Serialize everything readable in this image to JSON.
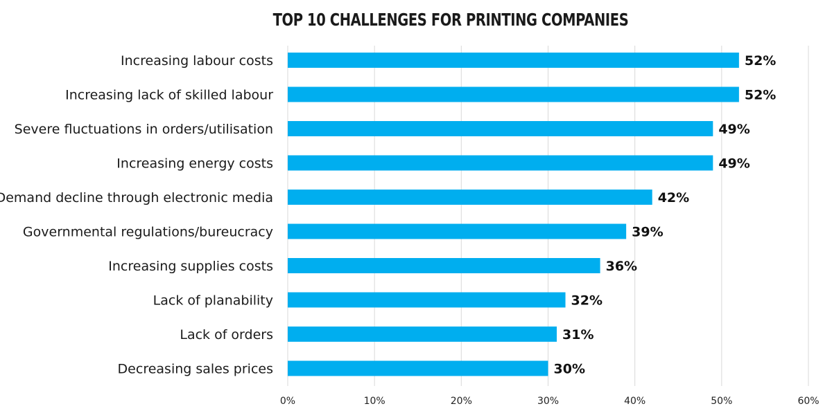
{
  "chart_data": {
    "type": "bar",
    "orientation": "horizontal",
    "title": "TOP 10 CHALLENGES FOR PRINTING COMPANIES",
    "categories": [
      "Increasing labour costs",
      "Increasing lack of skilled labour",
      "Severe fluctuations in orders/utilisation",
      "Increasing energy costs",
      "Demand decline through electronic media",
      "Governmental regulations/bureucracy",
      "Increasing supplies costs",
      "Lack of planability",
      "Lack of orders",
      "Decreasing sales prices"
    ],
    "values": [
      52,
      52,
      49,
      49,
      42,
      39,
      36,
      32,
      31,
      30
    ],
    "value_labels": [
      "52%",
      "52%",
      "49%",
      "49%",
      "42%",
      "39%",
      "36%",
      "32%",
      "31%",
      "30%"
    ],
    "xlim": [
      0,
      60
    ],
    "x_ticks": [
      0,
      10,
      20,
      30,
      40,
      50,
      60
    ],
    "x_tick_labels": [
      "0%",
      "10%",
      "20%",
      "30%",
      "40%",
      "50%",
      "60%"
    ],
    "xlabel": "",
    "ylabel": "",
    "grid": "vertical",
    "legend": "none",
    "bar_color": "#00AEEF"
  }
}
